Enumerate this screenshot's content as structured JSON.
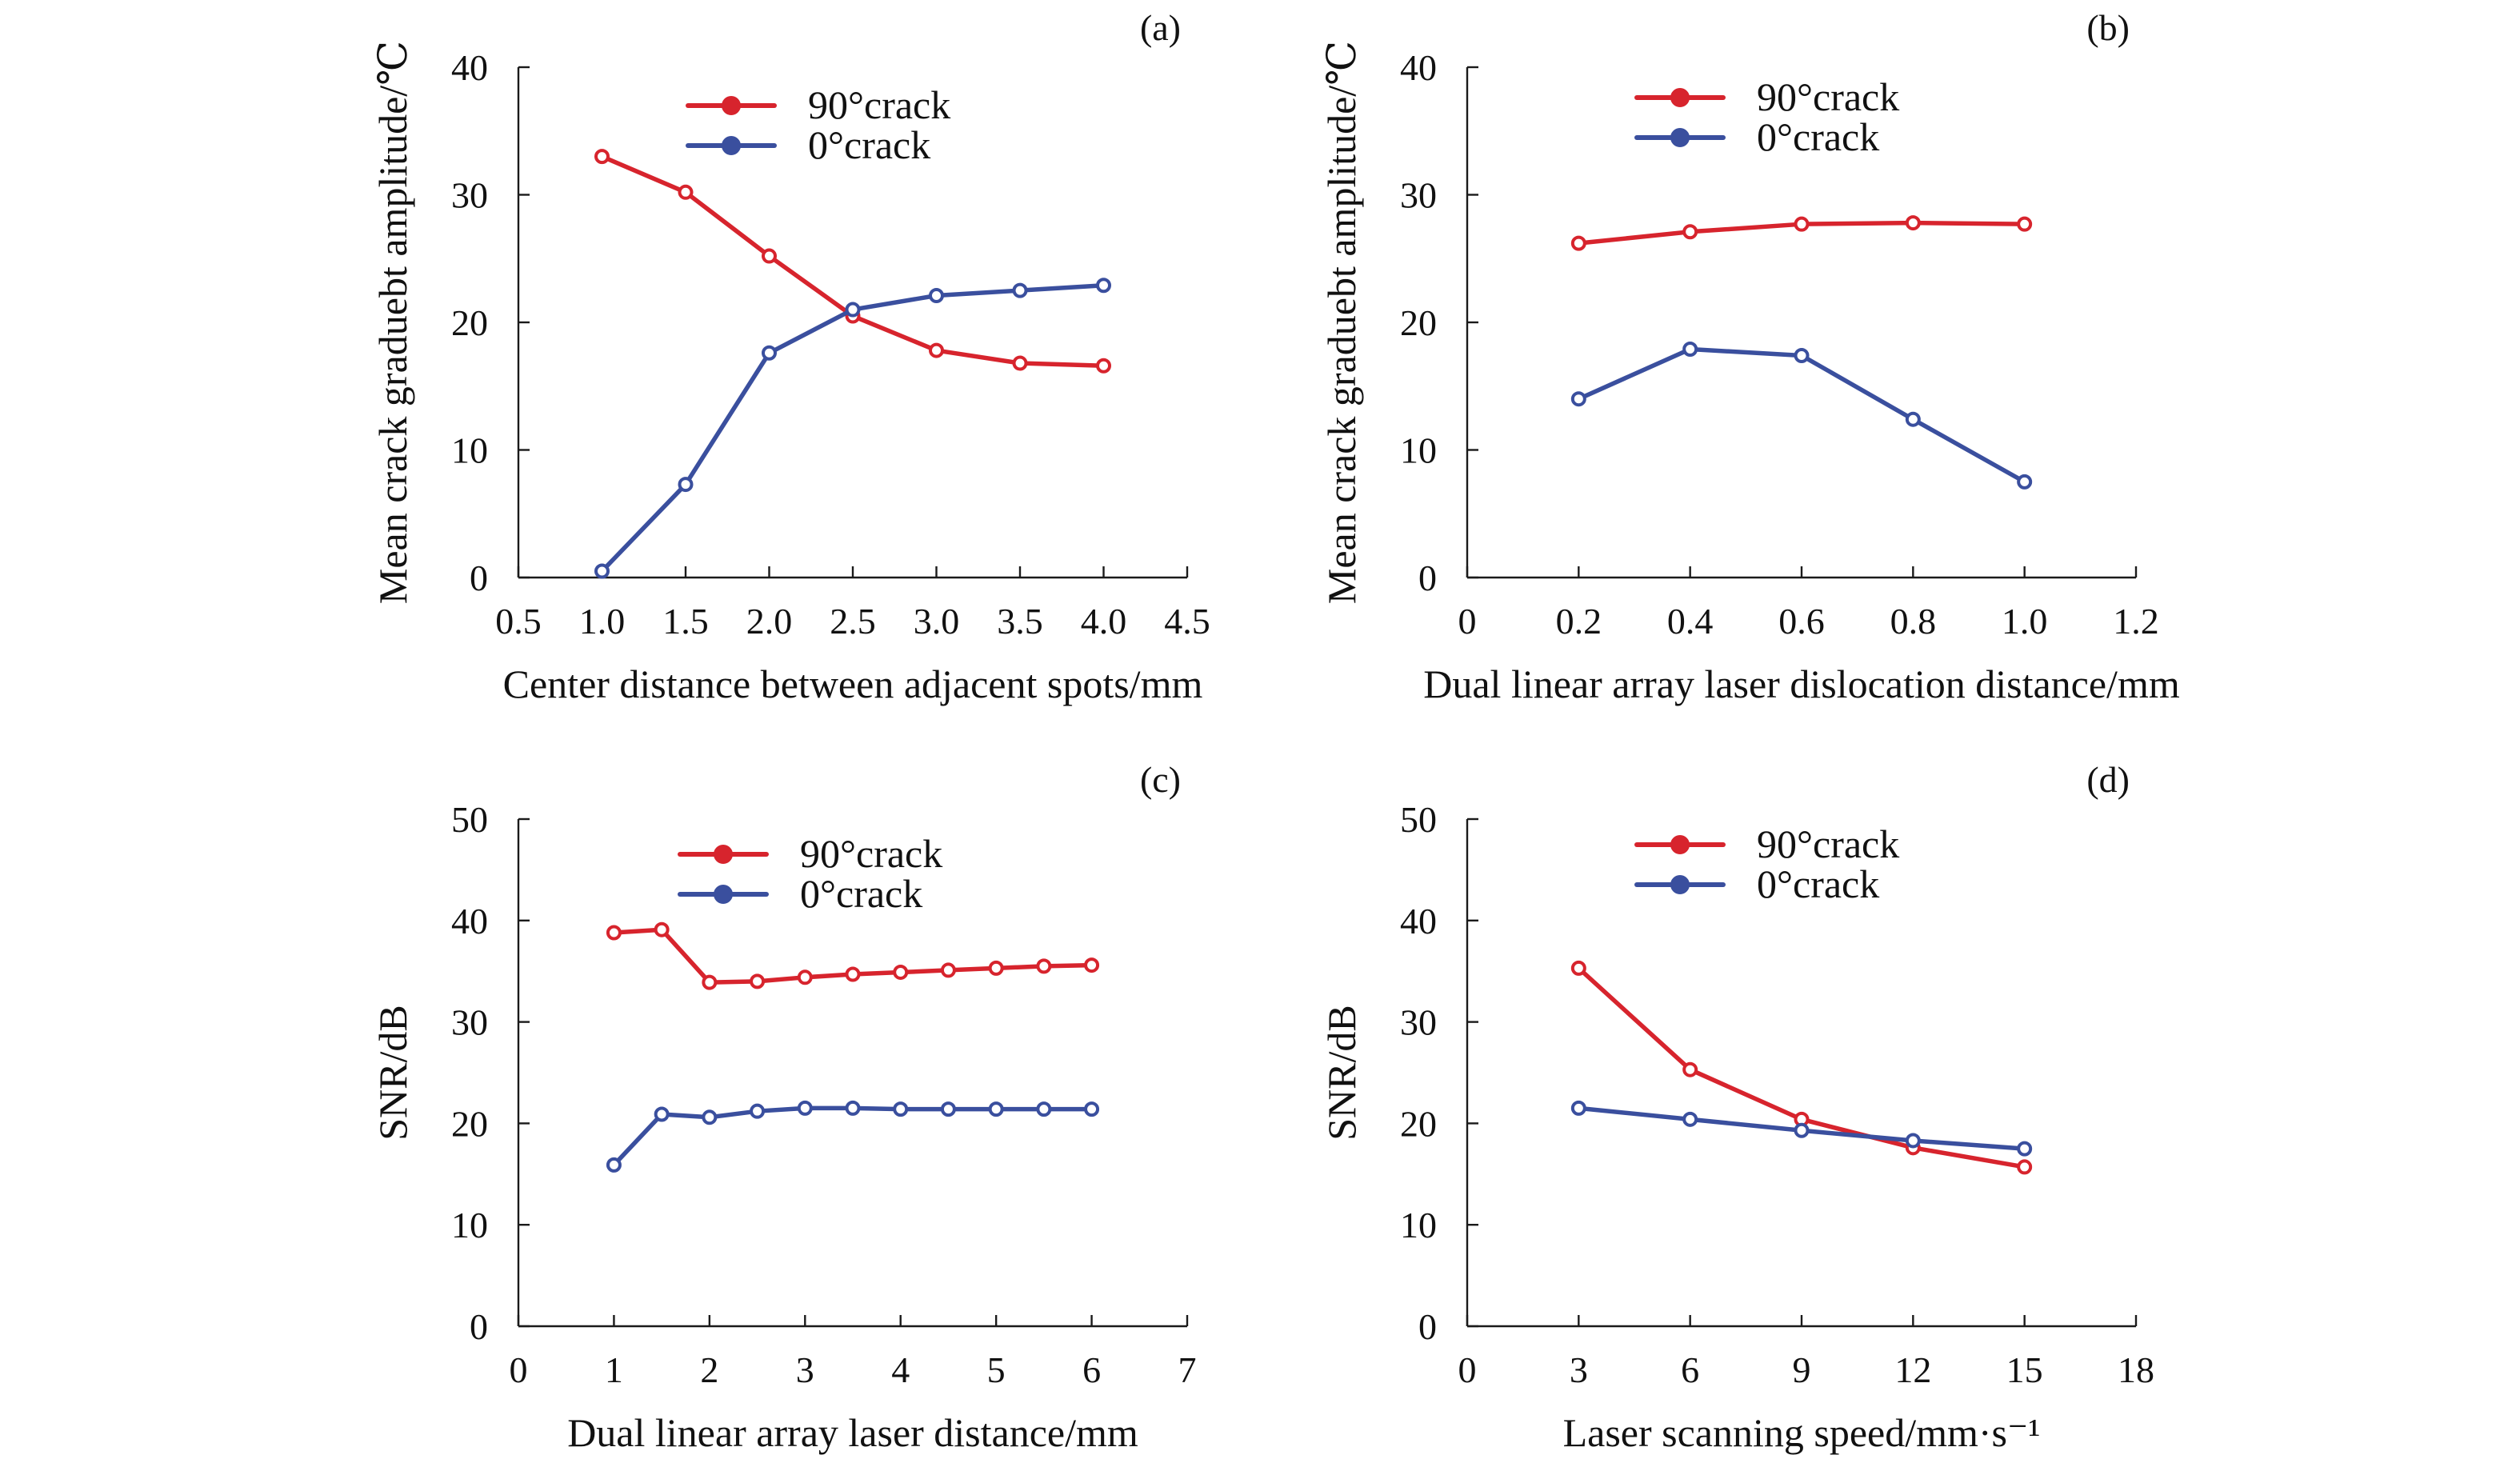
{
  "colors": {
    "red": "#d7242d",
    "blue": "#3a4f9e"
  },
  "chart_data": [
    {
      "type": "line",
      "panel_label": "(a)",
      "xlabel": "Center distance between adjacent spots/mm",
      "ylabel": "Mean crack graduebt amplitude/℃",
      "xlim": [
        0.5,
        4.5
      ],
      "ylim": [
        0,
        40
      ],
      "xticks": [
        0.5,
        1.0,
        1.5,
        2.0,
        2.5,
        3.0,
        3.5,
        4.0,
        4.5
      ],
      "xtick_labels": [
        "0.5",
        "1.0",
        "1.5",
        "2.0",
        "2.5",
        "3.0",
        "3.5",
        "4.0",
        "4.5"
      ],
      "yticks": [
        0,
        10,
        20,
        30,
        40
      ],
      "ytick_labels": [
        "0",
        "10",
        "20",
        "30",
        "40"
      ],
      "legend_position": "top-center",
      "x": [
        1.0,
        1.5,
        2.0,
        2.5,
        3.0,
        3.5,
        4.0
      ],
      "series": [
        {
          "name": "90°crack",
          "color": "red",
          "values": [
            33.0,
            30.2,
            25.2,
            20.5,
            17.8,
            16.8,
            16.6
          ]
        },
        {
          "name": "0°crack",
          "color": "blue",
          "values": [
            0.5,
            7.3,
            17.6,
            21.0,
            22.1,
            22.5,
            22.9
          ]
        }
      ]
    },
    {
      "type": "line",
      "panel_label": "(b)",
      "xlabel": "Dual linear array laser dislocation distance/mm",
      "ylabel": "Mean crack graduebt amplitude/℃",
      "xlim": [
        0,
        1.2
      ],
      "ylim": [
        0,
        40
      ],
      "xticks": [
        0,
        0.2,
        0.4,
        0.6,
        0.8,
        1.0,
        1.2
      ],
      "xtick_labels": [
        "0",
        "0.2",
        "0.4",
        "0.6",
        "0.8",
        "1.0",
        "1.2"
      ],
      "yticks": [
        0,
        10,
        20,
        30,
        40
      ],
      "ytick_labels": [
        "0",
        "10",
        "20",
        "30",
        "40"
      ],
      "legend_position": "top-center",
      "x": [
        0.2,
        0.4,
        0.6,
        0.8,
        1.0
      ],
      "series": [
        {
          "name": "90°crack",
          "color": "red",
          "values": [
            26.2,
            27.1,
            27.7,
            27.8,
            27.7
          ]
        },
        {
          "name": "0°crack",
          "color": "blue",
          "values": [
            14.0,
            17.9,
            17.4,
            12.4,
            7.5
          ]
        }
      ]
    },
    {
      "type": "line",
      "panel_label": "(c)",
      "xlabel": "Dual linear array laser distance/mm",
      "ylabel": "SNR/dB",
      "xlim": [
        0,
        7
      ],
      "ylim": [
        0,
        50
      ],
      "xticks": [
        0,
        1,
        2,
        3,
        4,
        5,
        6,
        7
      ],
      "xtick_labels": [
        "0",
        "1",
        "2",
        "3",
        "4",
        "5",
        "6",
        "7"
      ],
      "yticks": [
        0,
        10,
        20,
        30,
        40,
        50
      ],
      "ytick_labels": [
        "0",
        "10",
        "20",
        "30",
        "40",
        "50"
      ],
      "legend_position": "top-center",
      "x": [
        1.0,
        1.5,
        2.0,
        2.5,
        3.0,
        3.5,
        4.0,
        4.5,
        5.0,
        5.5,
        6.0
      ],
      "series": [
        {
          "name": "90°crack",
          "color": "red",
          "values": [
            38.8,
            39.1,
            33.9,
            34.0,
            34.4,
            34.7,
            34.9,
            35.1,
            35.3,
            35.5,
            35.6
          ]
        },
        {
          "name": "0°crack",
          "color": "blue",
          "values": [
            15.9,
            20.9,
            20.6,
            21.2,
            21.5,
            21.5,
            21.4,
            21.4,
            21.4,
            21.4,
            21.4
          ]
        }
      ]
    },
    {
      "type": "line",
      "panel_label": "(d)",
      "xlabel": "Laser scanning speed/mm·s⁻¹",
      "ylabel": "SNR/dB",
      "xlim": [
        0,
        18
      ],
      "ylim": [
        0,
        50
      ],
      "xticks": [
        0,
        3,
        6,
        9,
        12,
        15,
        18
      ],
      "xtick_labels": [
        "0",
        "3",
        "6",
        "9",
        "12",
        "15",
        "18"
      ],
      "yticks": [
        0,
        10,
        20,
        30,
        40,
        50
      ],
      "ytick_labels": [
        "0",
        "10",
        "20",
        "30",
        "40",
        "50"
      ],
      "legend_position": "top-center",
      "x": [
        3,
        6,
        9,
        12,
        15
      ],
      "series": [
        {
          "name": "90°crack",
          "color": "red",
          "values": [
            35.3,
            25.3,
            20.4,
            17.6,
            15.7
          ]
        },
        {
          "name": "0°crack",
          "color": "blue",
          "values": [
            21.5,
            20.4,
            19.3,
            18.3,
            17.5
          ]
        }
      ]
    }
  ]
}
